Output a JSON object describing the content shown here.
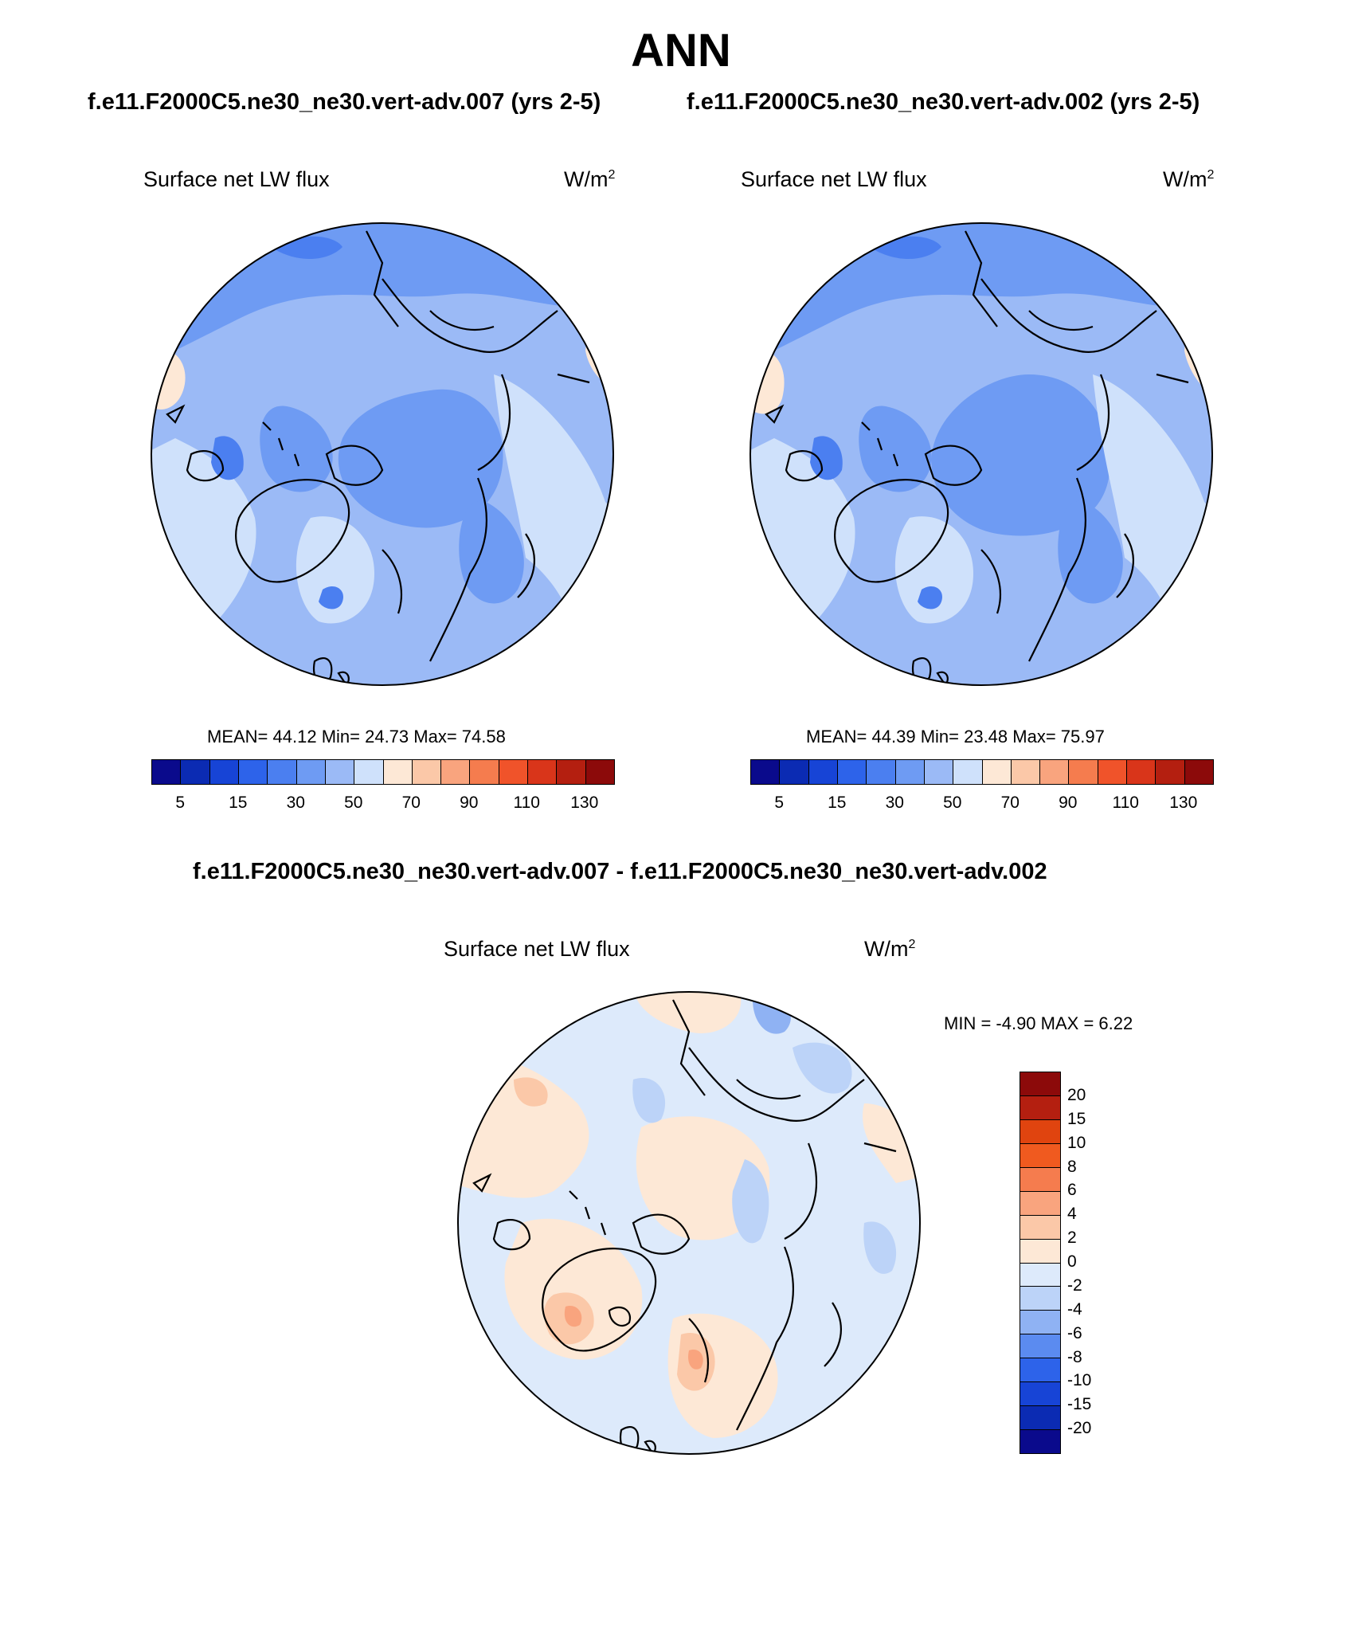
{
  "page": {
    "title": "ANN",
    "subtitle_left": "f.e11.F2000C5.ne30_ne30.vert-adv.007 (yrs 2-5)",
    "subtitle_right": "f.e11.F2000C5.ne30_ne30.vert-adv.002 (yrs 2-5)",
    "diff_title": "f.e11.F2000C5.ne30_ne30.vert-adv.007 - f.e11.F2000C5.ne30_ne30.vert-adv.002"
  },
  "panel_left": {
    "title": "Surface net LW flux",
    "units": "W/m",
    "units_sup": "2",
    "stats": "MEAN=  44.12  Min=  24.73  Max=  74.58"
  },
  "panel_right": {
    "title": "Surface net LW flux",
    "units": "W/m",
    "units_sup": "2",
    "stats": "MEAN=  44.39  Min=  23.48  Max=  75.97"
  },
  "panel_diff": {
    "title": "Surface net LW flux",
    "units": "W/m",
    "units_sup": "2",
    "stats": "MIN =  -4.90 MAX =   6.22"
  },
  "colorbar_main": {
    "colors": [
      "#0a0a8c",
      "#0b2bb3",
      "#1744d6",
      "#2d63ea",
      "#4b7ff0",
      "#6e9bf3",
      "#9bbaf6",
      "#cfe1fb",
      "#fde8d6",
      "#fbc8a8",
      "#f9a47e",
      "#f57c4e",
      "#f0532a",
      "#d9351a",
      "#b41f10",
      "#8c0a0a"
    ],
    "tick_labels": [
      "5",
      "15",
      "30",
      "50",
      "70",
      "90",
      "110",
      "130"
    ]
  },
  "colorbar_diff": {
    "colors": [
      "#8c0a0a",
      "#b41f10",
      "#e0440f",
      "#f05a1f",
      "#f57c4e",
      "#f9a47e",
      "#fbc8a8",
      "#fde8d6",
      "#ddeafb",
      "#bcd3f8",
      "#8fb2f3",
      "#5b8bf0",
      "#2d63ea",
      "#1744d6",
      "#0b2bb3",
      "#0a0a8c"
    ],
    "tick_labels": [
      "20",
      "15",
      "10",
      "8",
      "6",
      "4",
      "2",
      "0",
      "-2",
      "-4",
      "-6",
      "-8",
      "-10",
      "-15",
      "-20"
    ]
  },
  "chart_data": [
    {
      "type": "heatmap",
      "title": "Surface net LW flux",
      "case": "f.e11.F2000C5.ne30_ne30.vert-adv.007 (yrs 2-5)",
      "units": "W/m2",
      "projection": "north polar stereographic",
      "mean": 44.12,
      "min": 24.73,
      "max": 74.58,
      "levels": [
        5,
        10,
        15,
        20,
        30,
        40,
        50,
        60,
        70,
        80,
        90,
        100,
        110,
        120,
        130
      ]
    },
    {
      "type": "heatmap",
      "title": "Surface net LW flux",
      "case": "f.e11.F2000C5.ne30_ne30.vert-adv.002 (yrs 2-5)",
      "units": "W/m2",
      "projection": "north polar stereographic",
      "mean": 44.39,
      "min": 23.48,
      "max": 75.97,
      "levels": [
        5,
        10,
        15,
        20,
        30,
        40,
        50,
        60,
        70,
        80,
        90,
        100,
        110,
        120,
        130
      ]
    },
    {
      "type": "heatmap",
      "title": "Surface net LW flux",
      "case": "f.e11.F2000C5.ne30_ne30.vert-adv.007 - f.e11.F2000C5.ne30_ne30.vert-adv.002",
      "units": "W/m2",
      "projection": "north polar stereographic",
      "min": -4.9,
      "max": 6.22,
      "levels": [
        -20,
        -15,
        -10,
        -8,
        -6,
        -4,
        -2,
        0,
        2,
        4,
        6,
        8,
        10,
        15,
        20
      ]
    }
  ]
}
